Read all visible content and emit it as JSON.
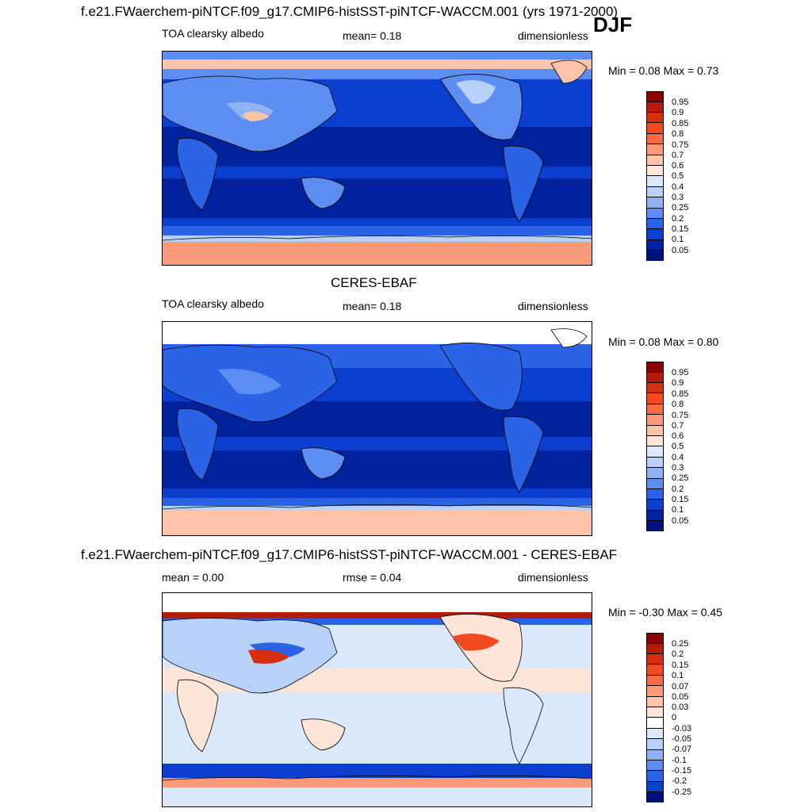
{
  "season": "DJF",
  "panels": [
    {
      "title": "f.e21.FWaerchem-piNTCF.f09_g17.CMIP6-histSST-piNTCF-WACCM.001 (yrs 1971-2000)",
      "left_label": "TOA clearsky albedo",
      "center_label": "mean=   0.18",
      "right_label": "dimensionless",
      "minmax": "Min =   0.08 Max =   0.73",
      "colorbar_labels": [
        "0.95",
        "0.9",
        "0.85",
        "0.8",
        "0.75",
        "0.7",
        "0.6",
        "0.5",
        "0.4",
        "0.3",
        "0.25",
        "0.2",
        "0.15",
        "0.1",
        "0.05"
      ],
      "colorbar_colors": [
        "#8b0000",
        "#b21c08",
        "#d62f10",
        "#f04a1e",
        "#fa6b45",
        "#fb9a78",
        "#fdc4aa",
        "#fde6d8",
        "#dbe8fb",
        "#b8d1f8",
        "#8fb2f4",
        "#5b8ef0",
        "#2a63e6",
        "#0a3fd0",
        "#00229c",
        "#00107a"
      ]
    },
    {
      "title": "CERES-EBAF",
      "left_label": "TOA clearsky albedo",
      "center_label": "mean=   0.18",
      "right_label": "dimensionless",
      "minmax": "Min =   0.08 Max =   0.80",
      "colorbar_labels": [
        "0.95",
        "0.9",
        "0.85",
        "0.8",
        "0.75",
        "0.7",
        "0.6",
        "0.5",
        "0.4",
        "0.3",
        "0.25",
        "0.2",
        "0.15",
        "0.1",
        "0.05"
      ],
      "colorbar_colors": [
        "#8b0000",
        "#b21c08",
        "#d62f10",
        "#f04a1e",
        "#fa6b45",
        "#fb9a78",
        "#fdc4aa",
        "#fde6d8",
        "#dbe8fb",
        "#b8d1f8",
        "#8fb2f4",
        "#5b8ef0",
        "#2a63e6",
        "#0a3fd0",
        "#00229c",
        "#00107a"
      ]
    },
    {
      "title": "f.e21.FWaerchem-piNTCF.f09_g17.CMIP6-histSST-piNTCF-WACCM.001 - CERES-EBAF",
      "left_label": "mean =   0.00",
      "center_label": "rmse =   0.04",
      "right_label": "dimensionless",
      "minmax": "Min =  -0.30 Max =   0.45",
      "colorbar_labels": [
        "0.25",
        "0.2",
        "0.15",
        "0.1",
        "0.07",
        "0.05",
        "0.03",
        "0",
        "-0.03",
        "-0.05",
        "-0.07",
        "-0.1",
        "-0.15",
        "-0.2",
        "-0.25"
      ],
      "colorbar_colors": [
        "#8b0000",
        "#b21c08",
        "#d62f10",
        "#f04a1e",
        "#fa6b45",
        "#fb9a78",
        "#fdc4aa",
        "#fde6d8",
        "#ffffff",
        "#dbe8fb",
        "#b8d1f8",
        "#8fb2f4",
        "#5b8ef0",
        "#2a63e6",
        "#0a3fd0",
        "#00107a"
      ]
    }
  ]
}
